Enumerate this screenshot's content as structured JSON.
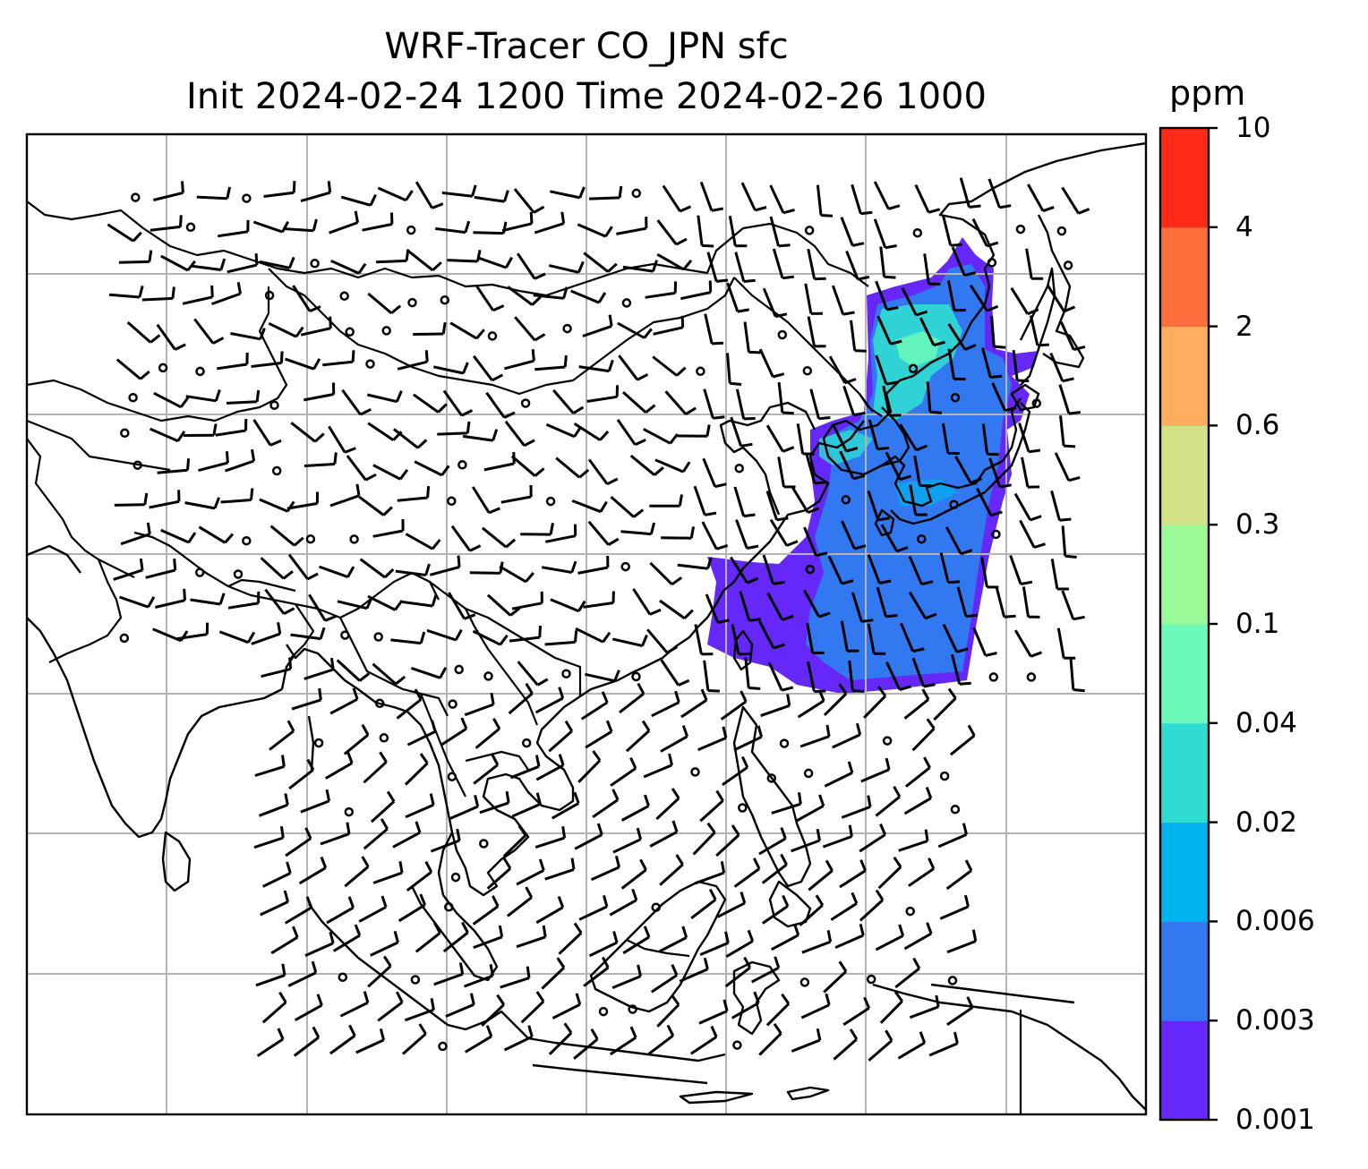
{
  "title": {
    "line1": "WRF-Tracer CO_JPN sfc",
    "line2": "Init 2024-02-24 1200 Time 2024-02-26 1000"
  },
  "colorbar": {
    "unit": "ppm",
    "tick_labels": [
      "0.001",
      "0.003",
      "0.006",
      "0.02",
      "0.04",
      "0.1",
      "0.3",
      "0.6",
      "2",
      "4",
      "10"
    ],
    "colors": [
      "#6528f9",
      "#3278f0",
      "#00b2ee",
      "#2fdcd2",
      "#6cf9bb",
      "#9bfa98",
      "#d2e088",
      "#ffae5f",
      "#ff6e3b",
      "#ff2a17"
    ]
  },
  "map": {
    "layers": [
      "coastlines",
      "country-borders",
      "lat-lon-gridlines",
      "wind-barbs",
      "tracer-concentration"
    ],
    "colors": {
      "coast": "#000000",
      "grid": "#b4b4b4"
    }
  }
}
